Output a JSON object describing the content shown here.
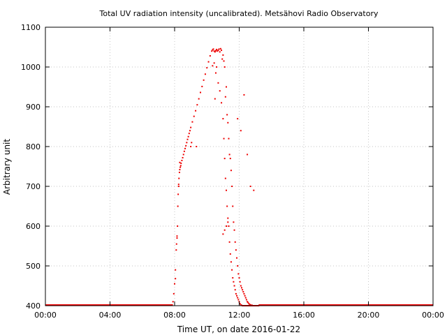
{
  "chart_data": {
    "type": "scatter",
    "title": "Total UV radiation intensity (uncalibrated). Metsähovi Radio Observatory",
    "xlabel": "Time UT, on date 2016-01-22",
    "ylabel": "Arbitrary unit",
    "xlim_hours": [
      0,
      24
    ],
    "ylim": [
      400,
      1100
    ],
    "x_tick_labels": [
      "00:00",
      "04:00",
      "08:00",
      "12:00",
      "16:00",
      "20:00",
      "00:00"
    ],
    "x_tick_hours": [
      0,
      4,
      8,
      12,
      16,
      20,
      24
    ],
    "y_ticks": [
      400,
      500,
      600,
      700,
      800,
      900,
      1000,
      1100
    ],
    "grid": true,
    "series_color": "#ee0000",
    "series": [
      {
        "x_hours": [
          7.85,
          7.9,
          7.95,
          8.0,
          8.05,
          8.1,
          8.12,
          8.15,
          8.18,
          8.2,
          8.22,
          8.25,
          8.27,
          8.3,
          8.32,
          8.35,
          8.38,
          8.4,
          8.45,
          8.5,
          8.55,
          8.6,
          8.65,
          8.7,
          8.75,
          8.8,
          8.85,
          8.9,
          8.95,
          9.0,
          9.1,
          9.2,
          9.3,
          9.4,
          9.5,
          9.6,
          9.7,
          9.8,
          9.9,
          10.0,
          10.1,
          10.2,
          10.3,
          10.35,
          10.4,
          10.45,
          10.5,
          10.55,
          10.6,
          10.65,
          10.7,
          10.75,
          10.8,
          10.85,
          10.9,
          10.95,
          11.0,
          11.05,
          11.1,
          11.15,
          11.2,
          11.25,
          11.3,
          11.35,
          11.4,
          11.45,
          11.5,
          11.55,
          11.6,
          11.65,
          11.7,
          11.75,
          11.8,
          11.85,
          11.9,
          11.95,
          12.0,
          12.05,
          12.1,
          12.15,
          12.2,
          12.25,
          12.3,
          12.35,
          12.4,
          12.45,
          12.5,
          12.55,
          12.6,
          12.65,
          12.7,
          12.75,
          12.8,
          12.85,
          12.9,
          12.95,
          13.0,
          13.05,
          13.1,
          13.15,
          13.2,
          10.35,
          10.45,
          10.55,
          10.7,
          10.8,
          10.9,
          11.0,
          11.05,
          11.1,
          11.15,
          11.2,
          11.25,
          11.3,
          11.35,
          11.4,
          11.45,
          11.5,
          11.55,
          11.6,
          11.65,
          11.7,
          11.75,
          11.8,
          11.85,
          11.9,
          11.95,
          12.0,
          12.05,
          12.1,
          12.15,
          12.2,
          12.25,
          12.3,
          12.35,
          12.4,
          12.45,
          12.5,
          12.55,
          12.6,
          12.65,
          12.7,
          12.75,
          12.8,
          12.85,
          12.9,
          12.95,
          13.0,
          13.05,
          13.1,
          8.05,
          8.15,
          8.25,
          8.32,
          9.0,
          9.05,
          9.35,
          10.5,
          10.6,
          11.0,
          11.1,
          11.2,
          11.3,
          11.9,
          12.1,
          12.3,
          12.5,
          12.7,
          12.9
        ],
        "y": [
          402,
          410,
          430,
          455,
          490,
          540,
          555,
          575,
          600,
          650,
          680,
          705,
          720,
          735,
          742,
          748,
          752,
          758,
          765,
          772,
          780,
          788,
          795,
          802,
          810,
          818,
          825,
          833,
          840,
          848,
          862,
          876,
          890,
          905,
          920,
          936,
          951,
          967,
          982,
          998,
          1013,
          1028,
          1040,
          1043,
          1045,
          1040,
          1038,
          1041,
          1044,
          1040,
          1042,
          1045,
          1038,
          1046,
          1042,
          1020,
          1030,
          1015,
          1000,
          925,
          950,
          880,
          860,
          820,
          780,
          770,
          740,
          700,
          650,
          610,
          590,
          560,
          540,
          520,
          500,
          480,
          470,
          460,
          450,
          445,
          440,
          435,
          430,
          425,
          420,
          415,
          410,
          408,
          405,
          403,
          402,
          401,
          401,
          400,
          400,
          400,
          400,
          400,
          400,
          400,
          400,
          1003,
          1010,
          985,
          960,
          940,
          910,
          870,
          820,
          770,
          720,
          690,
          650,
          620,
          600,
          560,
          530,
          510,
          490,
          470,
          460,
          450,
          440,
          430,
          425,
          420,
          415,
          410,
          405,
          402,
          401,
          400,
          400,
          400,
          400,
          400,
          400,
          400,
          400,
          400,
          400,
          400,
          400,
          400,
          400,
          400,
          400,
          400,
          400,
          400,
          468,
          570,
          700,
          760,
          800,
          810,
          800,
          920,
          1000,
          580,
          590,
          600,
          610,
          870,
          840,
          930,
          780,
          700,
          690
        ]
      }
    ]
  }
}
